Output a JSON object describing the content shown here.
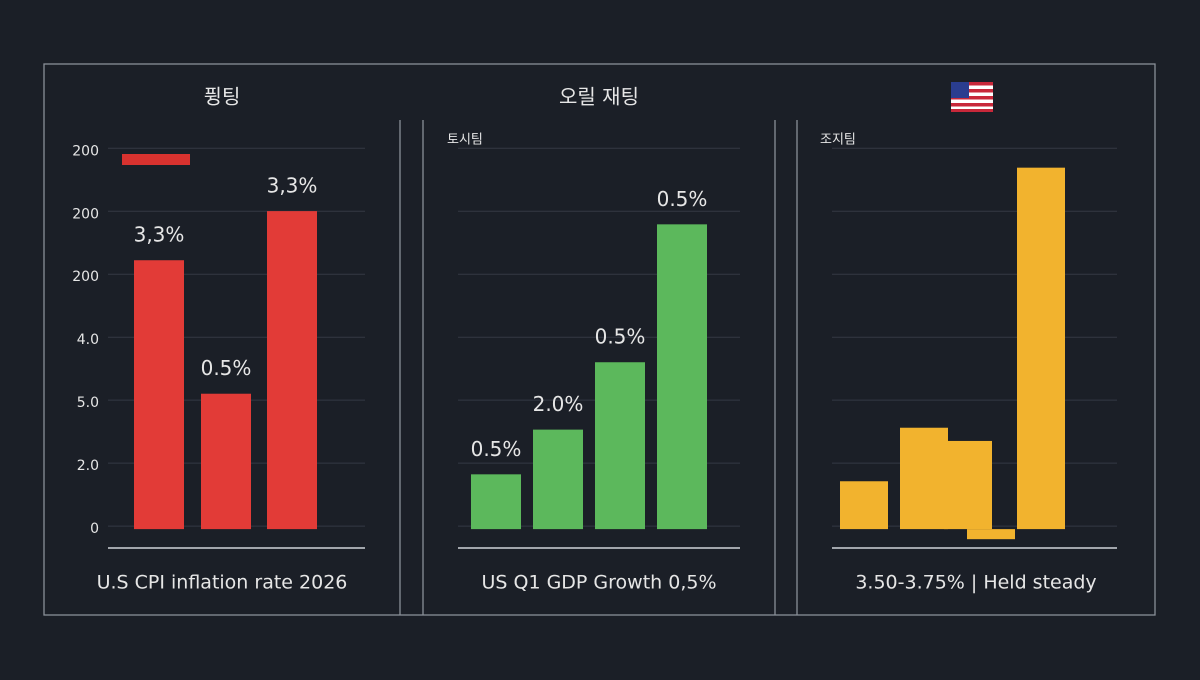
{
  "chart_data": [
    {
      "type": "bar",
      "title": "퓡팅",
      "caption": "U.S CPI inflation rate 2026",
      "categories": [
        null,
        null,
        null
      ],
      "values": [
        4.27,
        2.15,
        5.05
      ],
      "annotations": [
        "3,3%",
        "0.5%",
        "3,3%"
      ],
      "color": "#e23b37",
      "annotation_color": "#e8453c",
      "ylim": [
        -0.3,
        6.1
      ],
      "yticks": [
        {
          "value": 0,
          "label": "0"
        },
        {
          "value": 1,
          "label": "2.0"
        },
        {
          "value": 2,
          "label": "5.0"
        },
        {
          "value": 3,
          "label": "4.0"
        },
        {
          "value": 4,
          "label": "200"
        },
        {
          "value": 5,
          "label": "200"
        },
        {
          "value": 6,
          "label": "200"
        }
      ],
      "grid": true,
      "tick_labels": true
    },
    {
      "type": "bar",
      "title": "오릴 재팅",
      "subtitle": "토시팀",
      "caption": "US Q1 GDP Growth 0,5%",
      "categories": [
        null,
        null,
        null,
        null
      ],
      "values": [
        0.87,
        1.58,
        2.65,
        4.84
      ],
      "annotations": [
        "0.5%",
        "2.0%",
        "0.5%",
        "0.5%"
      ],
      "color": "#5cb85c",
      "annotation_color": "#62c152",
      "ylim": [
        -0.3,
        6.1
      ],
      "yticks": [
        0,
        1,
        2,
        3,
        4,
        5,
        6
      ],
      "grid": true,
      "tick_labels": false
    },
    {
      "type": "bar",
      "subtitle": "조지팀",
      "caption": "3.50-3.75% | Held steady",
      "categories": [
        null,
        null,
        null,
        null,
        null
      ],
      "values": [
        0.76,
        1.61,
        1.4,
        -0.16,
        5.74
      ],
      "color": "#f2b32e",
      "ylim": [
        -0.3,
        6.1
      ],
      "yticks": [
        0,
        1,
        2,
        3,
        4,
        5,
        6
      ],
      "grid": true,
      "tick_labels": false
    }
  ]
}
